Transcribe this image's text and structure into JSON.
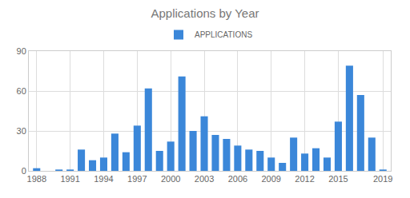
{
  "chart_data": {
    "type": "bar",
    "title": "Applications by Year",
    "categories": [
      "1988",
      null,
      null,
      "1991",
      null,
      null,
      "1994",
      null,
      null,
      "1997",
      null,
      null,
      "2000",
      null,
      null,
      "2003",
      null,
      null,
      "2006",
      null,
      null,
      "2009",
      null,
      null,
      "2012",
      null,
      null,
      "2015",
      null,
      null,
      null,
      "2019"
    ],
    "series": [
      {
        "name": "APPLICATIONS",
        "color": "#3b87d9",
        "values": [
          2,
          0,
          1,
          1,
          16,
          8,
          10,
          28,
          14,
          34,
          62,
          15,
          22,
          71,
          30,
          41,
          27,
          24,
          19,
          16,
          15,
          10,
          6,
          25,
          13,
          17,
          10,
          37,
          79,
          57,
          25,
          1
        ]
      }
    ],
    "ylim": [
      0,
      90
    ],
    "yticks": [
      0,
      30,
      60,
      90
    ],
    "grid": true,
    "legend": "top"
  }
}
